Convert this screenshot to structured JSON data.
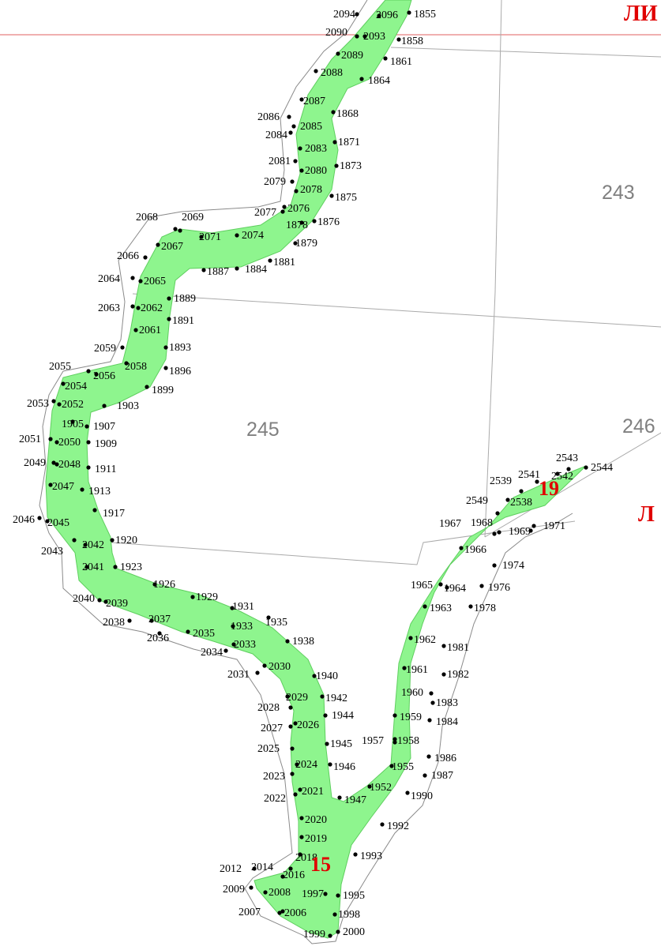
{
  "colors": {
    "fill": "#8ef58e",
    "boundary": "#8a8a8a",
    "parcel_line": "#aaaaaa",
    "grid_line": "#e06060",
    "point": "#000000",
    "contour_label": "#e00000",
    "parcel_label": "#808080"
  },
  "parcels": [
    "243",
    "245",
    "246"
  ],
  "contours": [
    "15",
    "19"
  ],
  "edge_labels": [
    "ЛИ",
    "Л"
  ],
  "points": [
    {
      "label": "2094"
    },
    {
      "label": "2096"
    },
    {
      "label": "1855"
    },
    {
      "label": "2090"
    },
    {
      "label": "2093"
    },
    {
      "label": "1858"
    },
    {
      "label": "2089"
    },
    {
      "label": "1861"
    },
    {
      "label": "2088"
    },
    {
      "label": "1864"
    },
    {
      "label": "2087"
    },
    {
      "label": "1868"
    },
    {
      "label": "2086"
    },
    {
      "label": "2085"
    },
    {
      "label": "2084"
    },
    {
      "label": "1871"
    },
    {
      "label": "2083"
    },
    {
      "label": "2081"
    },
    {
      "label": "1873"
    },
    {
      "label": "2080"
    },
    {
      "label": "2079"
    },
    {
      "label": "2078"
    },
    {
      "label": "1875"
    },
    {
      "label": "2077"
    },
    {
      "label": "2076"
    },
    {
      "label": "2068"
    },
    {
      "label": "2069"
    },
    {
      "label": "1878"
    },
    {
      "label": "1876"
    },
    {
      "label": "2071"
    },
    {
      "label": "2074"
    },
    {
      "label": "2067"
    },
    {
      "label": "1879"
    },
    {
      "label": "2066"
    },
    {
      "label": "1881"
    },
    {
      "label": "1887"
    },
    {
      "label": "1884"
    },
    {
      "label": "2064"
    },
    {
      "label": "2065"
    },
    {
      "label": "1889"
    },
    {
      "label": "2063"
    },
    {
      "label": "2062"
    },
    {
      "label": "1891"
    },
    {
      "label": "2061"
    },
    {
      "label": "1893"
    },
    {
      "label": "2059"
    },
    {
      "label": "2058"
    },
    {
      "label": "1896"
    },
    {
      "label": "2055"
    },
    {
      "label": "2056"
    },
    {
      "label": "2054"
    },
    {
      "label": "1899"
    },
    {
      "label": "2053"
    },
    {
      "label": "2052"
    },
    {
      "label": "1903"
    },
    {
      "label": "1905"
    },
    {
      "label": "1907"
    },
    {
      "label": "2051"
    },
    {
      "label": "2050"
    },
    {
      "label": "1909"
    },
    {
      "label": "2049"
    },
    {
      "label": "2048"
    },
    {
      "label": "1911"
    },
    {
      "label": "2047"
    },
    {
      "label": "1913"
    },
    {
      "label": "1917"
    },
    {
      "label": "2046"
    },
    {
      "label": "2045"
    },
    {
      "label": "2043"
    },
    {
      "label": "2042"
    },
    {
      "label": "1920"
    },
    {
      "label": "2041"
    },
    {
      "label": "1923"
    },
    {
      "label": "1926"
    },
    {
      "label": "2040"
    },
    {
      "label": "2039"
    },
    {
      "label": "1929"
    },
    {
      "label": "1931"
    },
    {
      "label": "2037"
    },
    {
      "label": "1935"
    },
    {
      "label": "2038"
    },
    {
      "label": "1933"
    },
    {
      "label": "2036"
    },
    {
      "label": "2035"
    },
    {
      "label": "1938"
    },
    {
      "label": "2033"
    },
    {
      "label": "2034"
    },
    {
      "label": "2030"
    },
    {
      "label": "2031"
    },
    {
      "label": "1940"
    },
    {
      "label": "2029"
    },
    {
      "label": "1942"
    },
    {
      "label": "2028"
    },
    {
      "label": "1944"
    },
    {
      "label": "2026"
    },
    {
      "label": "2027"
    },
    {
      "label": "1945"
    },
    {
      "label": "1957"
    },
    {
      "label": "1958"
    },
    {
      "label": "2025"
    },
    {
      "label": "2024"
    },
    {
      "label": "1946"
    },
    {
      "label": "1955"
    },
    {
      "label": "2023"
    },
    {
      "label": "1952"
    },
    {
      "label": "2022"
    },
    {
      "label": "2021"
    },
    {
      "label": "1947"
    },
    {
      "label": "2020"
    },
    {
      "label": "2019"
    },
    {
      "label": "1992"
    },
    {
      "label": "2018"
    },
    {
      "label": "1993"
    },
    {
      "label": "2012"
    },
    {
      "label": "2014"
    },
    {
      "label": "2016"
    },
    {
      "label": "2009"
    },
    {
      "label": "2008"
    },
    {
      "label": "1997"
    },
    {
      "label": "1995"
    },
    {
      "label": "2007"
    },
    {
      "label": "2006"
    },
    {
      "label": "1998"
    },
    {
      "label": "1999"
    },
    {
      "label": "2000"
    },
    {
      "label": "1990"
    },
    {
      "label": "1987"
    },
    {
      "label": "1986"
    },
    {
      "label": "1984"
    },
    {
      "label": "1959"
    },
    {
      "label": "1983"
    },
    {
      "label": "1960"
    },
    {
      "label": "1982"
    },
    {
      "label": "1961"
    },
    {
      "label": "1981"
    },
    {
      "label": "1962"
    },
    {
      "label": "1963"
    },
    {
      "label": "1978"
    },
    {
      "label": "1965"
    },
    {
      "label": "1964"
    },
    {
      "label": "1976"
    },
    {
      "label": "1974"
    },
    {
      "label": "1966"
    },
    {
      "label": "1967"
    },
    {
      "label": "1968"
    },
    {
      "label": "1969"
    },
    {
      "label": "1971"
    },
    {
      "label": "2549"
    },
    {
      "label": "2538"
    },
    {
      "label": "2539"
    },
    {
      "label": "2541"
    },
    {
      "label": "2542"
    },
    {
      "label": "2543"
    },
    {
      "label": "2544"
    }
  ]
}
